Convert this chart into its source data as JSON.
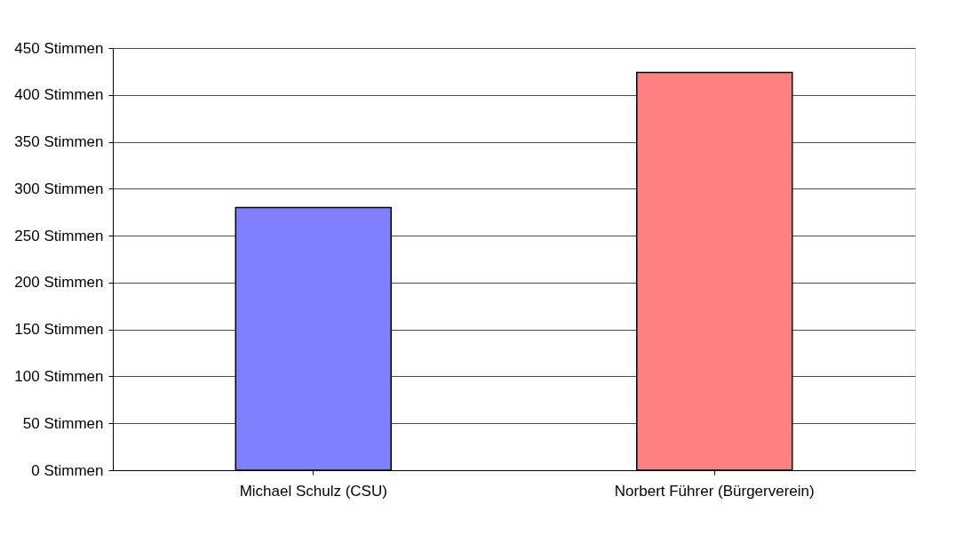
{
  "chart_data": {
    "type": "bar",
    "categories": [
      "Michael Schulz (CSU)",
      "Norbert Führer (Bürgerverein)"
    ],
    "values": [
      280,
      424
    ],
    "colors": [
      "#8080ff",
      "#ff8080"
    ],
    "ylim": [
      0,
      450
    ],
    "yticks": [
      {
        "value": 0,
        "label": "0 Stimmen"
      },
      {
        "value": 50,
        "label": "50 Stimmen"
      },
      {
        "value": 100,
        "label": "100 Stimmen"
      },
      {
        "value": 150,
        "label": "150 Stimmen"
      },
      {
        "value": 200,
        "label": "200 Stimmen"
      },
      {
        "value": 250,
        "label": "250 Stimmen"
      },
      {
        "value": 300,
        "label": "300 Stimmen"
      },
      {
        "value": 350,
        "label": "350 Stimmen"
      },
      {
        "value": 400,
        "label": "400 Stimmen"
      },
      {
        "value": 450,
        "label": "450 Stimmen"
      }
    ],
    "grid": "y",
    "legend": false
  }
}
